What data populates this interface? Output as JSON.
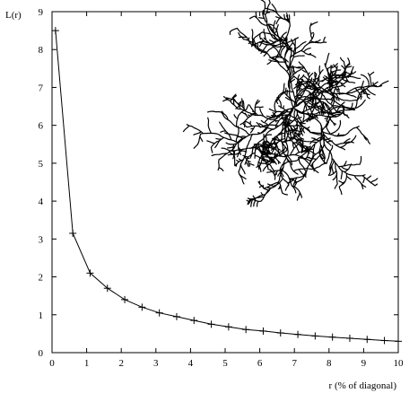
{
  "chart_data": {
    "type": "line",
    "title": "",
    "xlabel": "r (% of diagonal)",
    "ylabel": "L(r)",
    "xlim": [
      0,
      10
    ],
    "ylim": [
      0,
      9
    ],
    "x_ticks": [
      0,
      1,
      2,
      3,
      4,
      5,
      6,
      7,
      8,
      9,
      10
    ],
    "y_ticks": [
      0,
      1,
      2,
      3,
      4,
      5,
      6,
      7,
      8,
      9
    ],
    "grid": false,
    "marker": "plus",
    "series": [
      {
        "name": "L(r)",
        "x": [
          0.1,
          0.6,
          1.1,
          1.6,
          2.1,
          2.6,
          3.1,
          3.6,
          4.1,
          4.6,
          5.1,
          5.6,
          6.1,
          6.6,
          7.1,
          7.6,
          8.1,
          8.6,
          9.1,
          9.6,
          10.0
        ],
        "y": [
          8.5,
          3.15,
          2.1,
          1.7,
          1.4,
          1.2,
          1.05,
          0.95,
          0.85,
          0.75,
          0.68,
          0.61,
          0.57,
          0.52,
          0.48,
          0.44,
          0.41,
          0.38,
          0.35,
          0.32,
          0.3
        ]
      }
    ],
    "inset": {
      "description": "diffusion-limited aggregation cluster",
      "color": "#000000"
    }
  }
}
